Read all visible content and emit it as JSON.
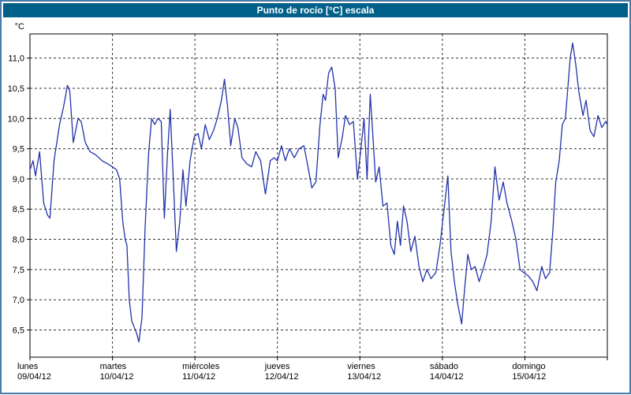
{
  "colors": {
    "titlebar_bg": "#006089",
    "titlebar_text": "#ffffff",
    "frame_border": "#4a7aaa",
    "line": "#2233aa",
    "grid": "#333333",
    "axis": "#000000",
    "plot_bg": "#ffffff"
  },
  "chart_data": {
    "type": "line",
    "title": "Punto de rocío [°C] escala",
    "ylabel": "°C",
    "grid": "dashed",
    "legend": "none",
    "ylim": [
      6.05,
      11.4
    ],
    "xlim_hours": [
      0,
      168
    ],
    "yticks": [
      {
        "value": 6.5,
        "label": "6,5"
      },
      {
        "value": 7.0,
        "label": "7,0"
      },
      {
        "value": 7.5,
        "label": "7,5"
      },
      {
        "value": 8.0,
        "label": "8,0"
      },
      {
        "value": 8.5,
        "label": "8,5"
      },
      {
        "value": 9.0,
        "label": "9,0"
      },
      {
        "value": 9.5,
        "label": "9,5"
      },
      {
        "value": 10.0,
        "label": "10,0"
      },
      {
        "value": 10.5,
        "label": "10,5"
      },
      {
        "value": 11.0,
        "label": "11,0"
      }
    ],
    "days": [
      {
        "name": "lunes",
        "date": "09/04/12"
      },
      {
        "name": "martes",
        "date": "10/04/12"
      },
      {
        "name": "miércoles",
        "date": "11/04/12"
      },
      {
        "name": "jueves",
        "date": "12/04/12"
      },
      {
        "name": "viernes",
        "date": "13/04/12"
      },
      {
        "name": "sábado",
        "date": "14/04/12"
      },
      {
        "name": "domingo",
        "date": "15/04/12"
      }
    ],
    "points": [
      [
        0,
        9.15
      ],
      [
        0.9,
        9.3
      ],
      [
        1.6,
        9.05
      ],
      [
        2.8,
        9.45
      ],
      [
        4,
        8.6
      ],
      [
        5.1,
        8.4
      ],
      [
        5.8,
        8.35
      ],
      [
        7,
        9.3
      ],
      [
        8.6,
        9.9
      ],
      [
        9.8,
        10.2
      ],
      [
        10.9,
        10.55
      ],
      [
        11.6,
        10.45
      ],
      [
        12.6,
        9.6
      ],
      [
        14,
        10.0
      ],
      [
        14.9,
        9.95
      ],
      [
        16.1,
        9.6
      ],
      [
        17.5,
        9.45
      ],
      [
        19.1,
        9.4
      ],
      [
        21,
        9.3
      ],
      [
        22.6,
        9.25
      ],
      [
        24,
        9.2
      ],
      [
        25.2,
        9.15
      ],
      [
        26.1,
        9.0
      ],
      [
        27,
        8.3
      ],
      [
        27.7,
        8.0
      ],
      [
        28.2,
        7.9
      ],
      [
        28.9,
        7.0
      ],
      [
        29.6,
        6.65
      ],
      [
        30.3,
        6.55
      ],
      [
        31,
        6.45
      ],
      [
        31.7,
        6.3
      ],
      [
        32.6,
        6.7
      ],
      [
        33.5,
        8.2
      ],
      [
        34.5,
        9.4
      ],
      [
        35.4,
        10.0
      ],
      [
        36.3,
        9.9
      ],
      [
        37.2,
        10.0
      ],
      [
        38.2,
        9.95
      ],
      [
        39.1,
        8.35
      ],
      [
        40,
        9.4
      ],
      [
        40.8,
        10.15
      ],
      [
        41.7,
        9.0
      ],
      [
        42.6,
        7.8
      ],
      [
        43.6,
        8.3
      ],
      [
        44.5,
        9.15
      ],
      [
        45.4,
        8.55
      ],
      [
        46.6,
        9.3
      ],
      [
        47.8,
        9.7
      ],
      [
        48.9,
        9.75
      ],
      [
        49.9,
        9.5
      ],
      [
        51,
        9.9
      ],
      [
        52.2,
        9.65
      ],
      [
        53.4,
        9.8
      ],
      [
        54.5,
        10.0
      ],
      [
        55.7,
        10.3
      ],
      [
        56.6,
        10.65
      ],
      [
        57.5,
        10.2
      ],
      [
        58.4,
        9.55
      ],
      [
        59.6,
        10.0
      ],
      [
        60.5,
        9.85
      ],
      [
        61.7,
        9.35
      ],
      [
        63.1,
        9.25
      ],
      [
        64.5,
        9.2
      ],
      [
        65.7,
        9.45
      ],
      [
        67.1,
        9.3
      ],
      [
        68.5,
        8.75
      ],
      [
        69.9,
        9.3
      ],
      [
        71,
        9.35
      ],
      [
        72,
        9.3
      ],
      [
        73.2,
        9.55
      ],
      [
        74.3,
        9.3
      ],
      [
        75.5,
        9.5
      ],
      [
        76.9,
        9.35
      ],
      [
        78.3,
        9.5
      ],
      [
        79.7,
        9.55
      ],
      [
        80.9,
        9.2
      ],
      [
        82,
        8.85
      ],
      [
        83.2,
        8.95
      ],
      [
        84.4,
        9.9
      ],
      [
        85.3,
        10.4
      ],
      [
        86,
        10.3
      ],
      [
        86.9,
        10.75
      ],
      [
        87.8,
        10.85
      ],
      [
        88.8,
        10.5
      ],
      [
        89.7,
        9.35
      ],
      [
        90.9,
        9.7
      ],
      [
        91.8,
        10.05
      ],
      [
        93,
        9.9
      ],
      [
        94.1,
        9.95
      ],
      [
        95.3,
        9.0
      ],
      [
        96.2,
        9.45
      ],
      [
        97.2,
        10.0
      ],
      [
        98.1,
        9.0
      ],
      [
        99,
        10.4
      ],
      [
        99.9,
        9.6
      ],
      [
        100.6,
        8.95
      ],
      [
        101.6,
        9.2
      ],
      [
        102.7,
        8.55
      ],
      [
        103.9,
        8.6
      ],
      [
        105,
        7.9
      ],
      [
        106,
        7.75
      ],
      [
        106.9,
        8.3
      ],
      [
        107.8,
        7.9
      ],
      [
        108.7,
        8.55
      ],
      [
        109.7,
        8.3
      ],
      [
        110.8,
        7.8
      ],
      [
        112,
        8.05
      ],
      [
        113.2,
        7.55
      ],
      [
        114.3,
        7.3
      ],
      [
        115.5,
        7.5
      ],
      [
        116.7,
        7.35
      ],
      [
        118.1,
        7.45
      ],
      [
        119.3,
        7.9
      ],
      [
        120.7,
        8.6
      ],
      [
        121.6,
        9.05
      ],
      [
        122.5,
        7.8
      ],
      [
        123.5,
        7.3
      ],
      [
        124.4,
        6.95
      ],
      [
        125.6,
        6.6
      ],
      [
        126.5,
        7.2
      ],
      [
        127.4,
        7.75
      ],
      [
        128.4,
        7.5
      ],
      [
        129.5,
        7.55
      ],
      [
        130.7,
        7.3
      ],
      [
        131.8,
        7.5
      ],
      [
        133,
        7.75
      ],
      [
        134.2,
        8.3
      ],
      [
        135.3,
        9.2
      ],
      [
        136.5,
        8.65
      ],
      [
        137.7,
        8.95
      ],
      [
        138.8,
        8.6
      ],
      [
        140.2,
        8.3
      ],
      [
        141.4,
        8.0
      ],
      [
        142.6,
        7.5
      ],
      [
        143.7,
        7.45
      ],
      [
        144.9,
        7.4
      ],
      [
        146.3,
        7.3
      ],
      [
        147.5,
        7.15
      ],
      [
        148.9,
        7.55
      ],
      [
        150,
        7.35
      ],
      [
        151.2,
        7.45
      ],
      [
        152.1,
        8.1
      ],
      [
        153,
        8.95
      ],
      [
        154,
        9.3
      ],
      [
        154.9,
        9.9
      ],
      [
        155.8,
        10.0
      ],
      [
        156.5,
        10.5
      ],
      [
        157.2,
        11.0
      ],
      [
        157.9,
        11.25
      ],
      [
        158.8,
        10.9
      ],
      [
        159.7,
        10.45
      ],
      [
        160.9,
        10.05
      ],
      [
        161.8,
        10.3
      ],
      [
        163,
        9.8
      ],
      [
        164.1,
        9.7
      ],
      [
        165.3,
        10.05
      ],
      [
        166.4,
        9.85
      ],
      [
        167.5,
        9.95
      ],
      [
        168,
        9.9
      ]
    ]
  }
}
